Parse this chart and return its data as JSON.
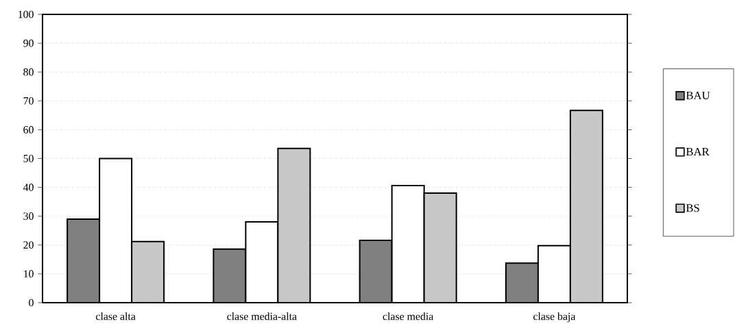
{
  "chart_data": {
    "type": "bar",
    "categories": [
      "clase alta",
      "clase media-alta",
      "clase media",
      "clase baja"
    ],
    "series": [
      {
        "name": "BAU",
        "color": "#808080",
        "values": [
          29,
          18.6,
          21.6,
          13.7
        ]
      },
      {
        "name": "BAR",
        "color": "#ffffff",
        "values": [
          50,
          28,
          40.6,
          19.8
        ]
      },
      {
        "name": "BS",
        "color": "#c8c8c8",
        "values": [
          21.2,
          53.5,
          38,
          66.7
        ]
      }
    ],
    "ylim": [
      0,
      100
    ],
    "yticks": [
      0,
      10,
      20,
      30,
      40,
      50,
      60,
      70,
      80,
      90,
      100
    ],
    "grid": "y",
    "legend": "right"
  }
}
